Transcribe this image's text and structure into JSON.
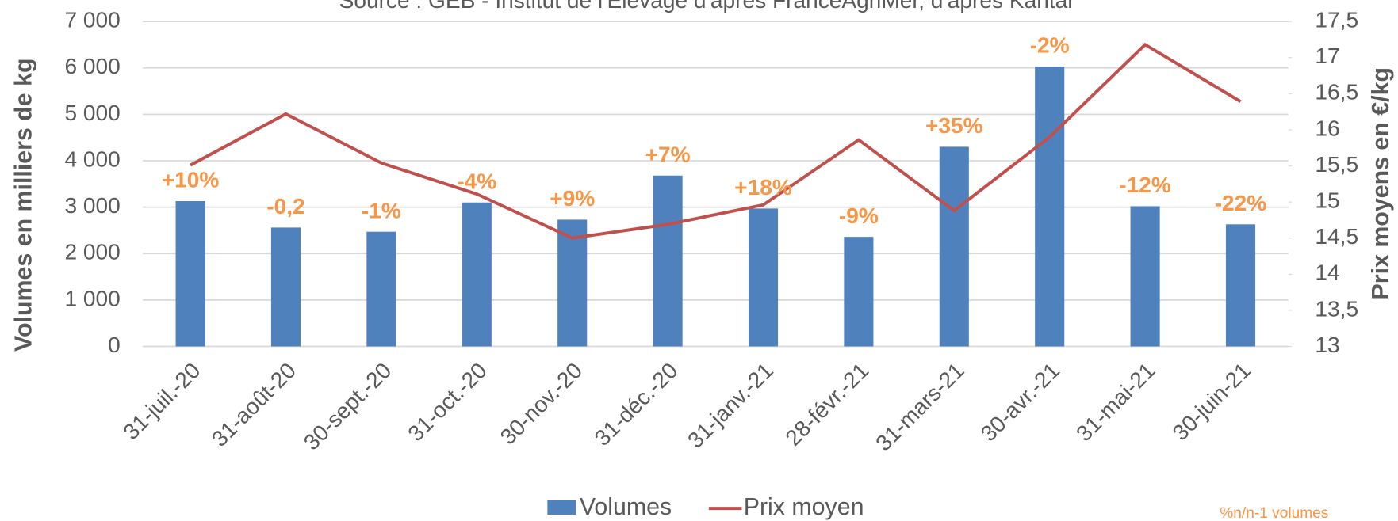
{
  "chart_data": {
    "type": "bar_line",
    "subtitle": "Source : GEB - Institut de l'Elevage d'après FranceAgriMer, d'après Kantar",
    "y_label": "Volumes en milliers de kg",
    "y2_label": "Prix moyens en €/kg",
    "footnote": "%n/n-1 volumes",
    "categories": [
      "31-juil.-20",
      "31-août-20",
      "30-sept.-20",
      "31-oct.-20",
      "30-nov.-20",
      "31-déc.-20",
      "31-janv.-21",
      "28-févr.-21",
      "31-mars-21",
      "30-avr.-21",
      "31-mai-21",
      "30-juin-21"
    ],
    "series": [
      {
        "name": "Volumes",
        "color": "#4f81bd",
        "values": [
          3130,
          2560,
          2470,
          3100,
          2730,
          3680,
          2970,
          2360,
          4300,
          6030,
          3020,
          2630
        ]
      },
      {
        "name": "Prix moyen",
        "color": "#c0504d",
        "axis": "y2",
        "values": [
          15.51,
          16.22,
          15.54,
          15.11,
          14.5,
          14.69,
          14.96,
          15.86,
          14.88,
          15.9,
          17.18,
          16.39
        ]
      }
    ],
    "bar_annotations": [
      "+10%",
      "-0,2",
      "-1%",
      "-4%",
      "+9%",
      "+7%",
      "+18%",
      "-9%",
      "+35%",
      "-2%",
      "-12%",
      "-22%"
    ],
    "annotation_color": "#f79646",
    "ylim": [
      0,
      7000
    ],
    "yticks": [
      0,
      {
        "value": 1000,
        "label": "1 000"
      },
      {
        "value": 2000,
        "label": "2 000"
      },
      {
        "value": 3000,
        "label": "3 000"
      },
      {
        "value": 4000,
        "label": "4 000"
      },
      {
        "value": 5000,
        "label": "5 000"
      },
      {
        "value": 6000,
        "label": "6 000"
      },
      {
        "value": 7000,
        "label": "7 000"
      }
    ],
    "y2lim": [
      13,
      17.5
    ],
    "y2ticks": [
      13,
      {
        "value": 13.5,
        "label": "13,5"
      },
      14,
      {
        "value": 14.5,
        "label": "14,5"
      },
      15,
      {
        "value": 15.5,
        "label": "15,5"
      },
      16,
      {
        "value": 16.5,
        "label": "16,5"
      },
      17,
      {
        "value": 17.5,
        "label": "17,5"
      }
    ],
    "grid": true,
    "legend": "bottom"
  }
}
